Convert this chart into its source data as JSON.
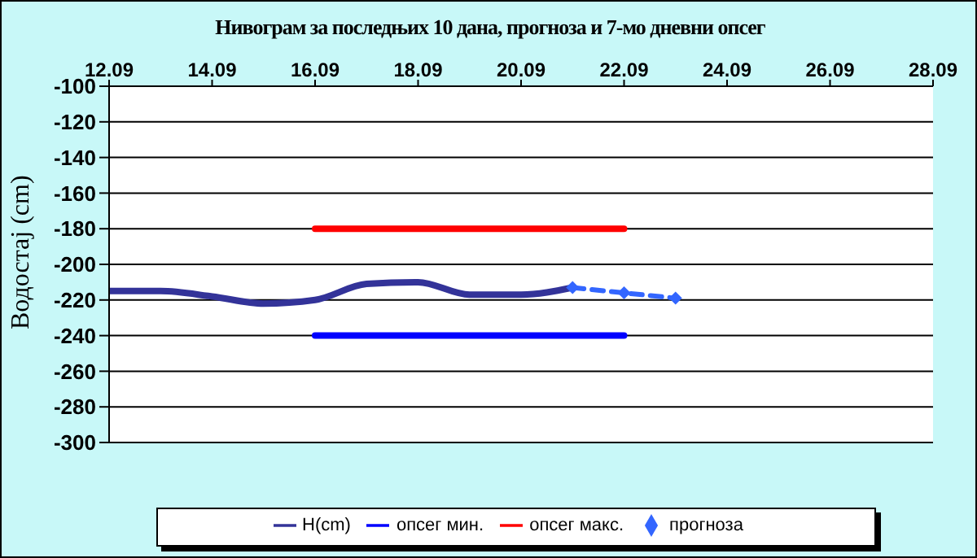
{
  "chart_data": {
    "type": "line",
    "title": "Нивограм за последњих 10 дана, прогноза и 7-мо дневни опсег",
    "ylabel": "Водостај (cm)",
    "xlim": [
      "--09-12",
      "--09-28"
    ],
    "xticks": [
      {
        "value": "--09-12",
        "label": "12.09"
      },
      {
        "value": "--09-14",
        "label": "14.09"
      },
      {
        "value": "--09-16",
        "label": "16.09"
      },
      {
        "value": "--09-18",
        "label": "18.09"
      },
      {
        "value": "--09-20",
        "label": "20.09"
      },
      {
        "value": "--09-22",
        "label": "22.09"
      },
      {
        "value": "--09-24",
        "label": "24.09"
      },
      {
        "value": "--09-26",
        "label": "26.09"
      },
      {
        "value": "--09-28",
        "label": "28.09"
      }
    ],
    "ylim": [
      -300,
      -100
    ],
    "yticks": [
      -300,
      -280,
      -260,
      -240,
      -220,
      -200,
      -180,
      -160,
      -140,
      -120,
      -100
    ],
    "grid": "y",
    "legend": "bottom",
    "series": [
      {
        "name": "H(cm)",
        "color": "#333399",
        "x": [
          "--09-12",
          "--09-13",
          "--09-14",
          "--09-15",
          "--09-16",
          "--09-17",
          "--09-18",
          "--09-19",
          "--09-20",
          "--09-21"
        ],
        "values": [
          -215,
          -215,
          -218,
          -222,
          -220,
          -211,
          -210,
          -217,
          -217,
          -213
        ],
        "marker": "none",
        "line_style": "solid"
      },
      {
        "name": "опсег мин.",
        "color": "#0000ff",
        "x": [
          "--09-16",
          "--09-22"
        ],
        "values": [
          -240,
          -240
        ],
        "marker": "none",
        "line_style": "solid"
      },
      {
        "name": "опсег макс.",
        "color": "#ff0000",
        "x": [
          "--09-16",
          "--09-22"
        ],
        "values": [
          -180,
          -180
        ],
        "marker": "none",
        "line_style": "solid"
      },
      {
        "name": "прогноза",
        "color": "#3366ff",
        "x": [
          "--09-21",
          "--09-22",
          "--09-23"
        ],
        "values": [
          -213,
          -216,
          -219
        ],
        "marker": "diamond",
        "line_style": "dashed"
      }
    ]
  }
}
